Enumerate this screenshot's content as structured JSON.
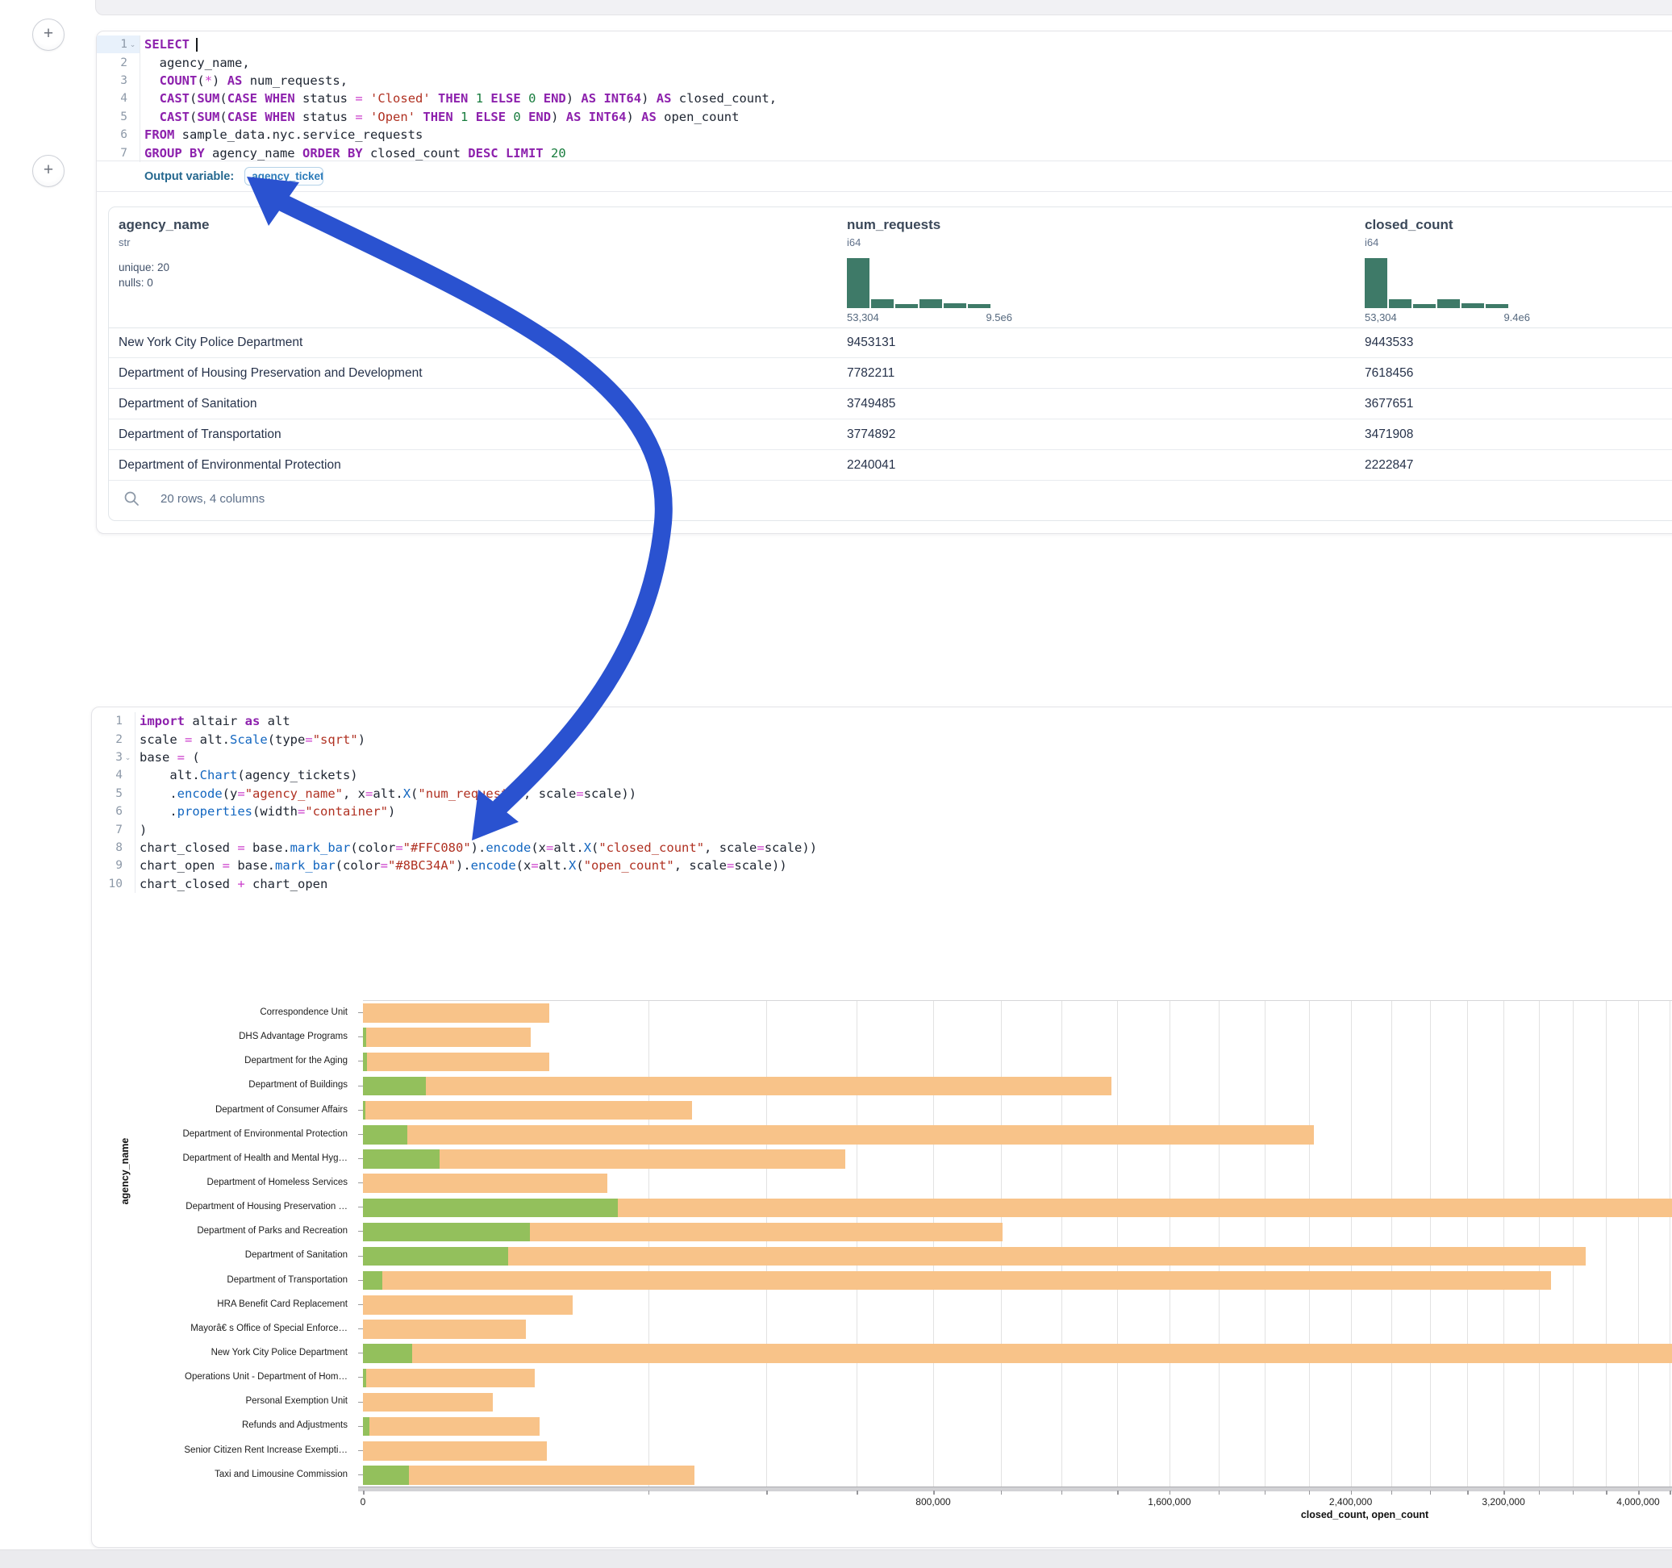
{
  "buttons": {
    "add_cell": "+"
  },
  "output_variable": {
    "label": "Output variable:",
    "value": "agency_tickets"
  },
  "sql_cell": {
    "lines": [
      {
        "n": "1",
        "chevron": true,
        "active": true,
        "cursor": true,
        "tokens": [
          [
            "kw",
            "SELECT"
          ],
          [
            "cursor",
            ""
          ]
        ]
      },
      {
        "n": "2",
        "tokens": [
          [
            "idn",
            "  agency_name,"
          ]
        ]
      },
      {
        "n": "3",
        "tokens": [
          [
            "idn",
            "  "
          ],
          [
            "kw",
            "COUNT"
          ],
          [
            "idn",
            "("
          ],
          [
            "op",
            "*"
          ],
          [
            "idn",
            ") "
          ],
          [
            "kw",
            "AS"
          ],
          [
            "idn",
            " num_requests,"
          ]
        ]
      },
      {
        "n": "4",
        "tokens": [
          [
            "idn",
            "  "
          ],
          [
            "kw",
            "CAST"
          ],
          [
            "idn",
            "("
          ],
          [
            "kw",
            "SUM"
          ],
          [
            "idn",
            "("
          ],
          [
            "kw",
            "CASE"
          ],
          [
            "idn",
            " "
          ],
          [
            "kw",
            "WHEN"
          ],
          [
            "idn",
            " status "
          ],
          [
            "op",
            "="
          ],
          [
            "idn",
            " "
          ],
          [
            "str",
            "'Closed'"
          ],
          [
            "idn",
            " "
          ],
          [
            "kw",
            "THEN"
          ],
          [
            "idn",
            " "
          ],
          [
            "num",
            "1"
          ],
          [
            "idn",
            " "
          ],
          [
            "kw",
            "ELSE"
          ],
          [
            "idn",
            " "
          ],
          [
            "num",
            "0"
          ],
          [
            "idn",
            " "
          ],
          [
            "kw",
            "END"
          ],
          [
            "idn",
            ") "
          ],
          [
            "kw",
            "AS"
          ],
          [
            "idn",
            " "
          ],
          [
            "kw",
            "INT64"
          ],
          [
            "idn",
            ") "
          ],
          [
            "kw",
            "AS"
          ],
          [
            "idn",
            " closed_count,"
          ]
        ]
      },
      {
        "n": "5",
        "tokens": [
          [
            "idn",
            "  "
          ],
          [
            "kw",
            "CAST"
          ],
          [
            "idn",
            "("
          ],
          [
            "kw",
            "SUM"
          ],
          [
            "idn",
            "("
          ],
          [
            "kw",
            "CASE"
          ],
          [
            "idn",
            " "
          ],
          [
            "kw",
            "WHEN"
          ],
          [
            "idn",
            " status "
          ],
          [
            "op",
            "="
          ],
          [
            "idn",
            " "
          ],
          [
            "str",
            "'Open'"
          ],
          [
            "idn",
            " "
          ],
          [
            "kw",
            "THEN"
          ],
          [
            "idn",
            " "
          ],
          [
            "num",
            "1"
          ],
          [
            "idn",
            " "
          ],
          [
            "kw",
            "ELSE"
          ],
          [
            "idn",
            " "
          ],
          [
            "num",
            "0"
          ],
          [
            "idn",
            " "
          ],
          [
            "kw",
            "END"
          ],
          [
            "idn",
            ") "
          ],
          [
            "kw",
            "AS"
          ],
          [
            "idn",
            " "
          ],
          [
            "kw",
            "INT64"
          ],
          [
            "idn",
            ") "
          ],
          [
            "kw",
            "AS"
          ],
          [
            "idn",
            " open_count"
          ]
        ]
      },
      {
        "n": "6",
        "tokens": [
          [
            "kw",
            "FROM"
          ],
          [
            "idn",
            " sample_data.nyc.service_requests"
          ]
        ]
      },
      {
        "n": "7",
        "tokens": [
          [
            "kw",
            "GROUP BY"
          ],
          [
            "idn",
            " agency_name "
          ],
          [
            "kw",
            "ORDER BY"
          ],
          [
            "idn",
            " closed_count "
          ],
          [
            "kw",
            "DESC"
          ],
          [
            "idn",
            " "
          ],
          [
            "kw",
            "LIMIT"
          ],
          [
            "idn",
            " "
          ],
          [
            "num",
            "20"
          ]
        ]
      }
    ]
  },
  "python_cell": {
    "lines": [
      {
        "n": "1",
        "tokens": [
          [
            "kw",
            "import"
          ],
          [
            "idn",
            " altair "
          ],
          [
            "kw",
            "as"
          ],
          [
            "idn",
            " alt"
          ]
        ]
      },
      {
        "n": "2",
        "tokens": [
          [
            "idn",
            "scale "
          ],
          [
            "op",
            "="
          ],
          [
            "idn",
            " alt."
          ],
          [
            "fn",
            "Scale"
          ],
          [
            "idn",
            "(type"
          ],
          [
            "op",
            "="
          ],
          [
            "str",
            "\"sqrt\""
          ],
          [
            "idn",
            ")"
          ]
        ]
      },
      {
        "n": "3",
        "chevron": true,
        "tokens": [
          [
            "idn",
            "base "
          ],
          [
            "op",
            "="
          ],
          [
            "idn",
            " ("
          ]
        ]
      },
      {
        "n": "4",
        "tokens": [
          [
            "idn",
            "    alt."
          ],
          [
            "fn",
            "Chart"
          ],
          [
            "idn",
            "(agency_tickets)"
          ]
        ]
      },
      {
        "n": "5",
        "tokens": [
          [
            "idn",
            "    ."
          ],
          [
            "fn",
            "encode"
          ],
          [
            "idn",
            "(y"
          ],
          [
            "op",
            "="
          ],
          [
            "str",
            "\"agency_name\""
          ],
          [
            "idn",
            ", x"
          ],
          [
            "op",
            "="
          ],
          [
            "idn",
            "alt."
          ],
          [
            "fn",
            "X"
          ],
          [
            "idn",
            "("
          ],
          [
            "str",
            "\"num_requests\""
          ],
          [
            "idn",
            ", scale"
          ],
          [
            "op",
            "="
          ],
          [
            "idn",
            "scale))"
          ]
        ]
      },
      {
        "n": "6",
        "tokens": [
          [
            "idn",
            "    ."
          ],
          [
            "fn",
            "properties"
          ],
          [
            "idn",
            "(width"
          ],
          [
            "op",
            "="
          ],
          [
            "str",
            "\"container\""
          ],
          [
            "idn",
            ")"
          ]
        ]
      },
      {
        "n": "7",
        "tokens": [
          [
            "idn",
            ")"
          ]
        ]
      },
      {
        "n": "8",
        "tokens": [
          [
            "idn",
            "chart_closed "
          ],
          [
            "op",
            "="
          ],
          [
            "idn",
            " base."
          ],
          [
            "fn",
            "mark_bar"
          ],
          [
            "idn",
            "(color"
          ],
          [
            "op",
            "="
          ],
          [
            "str",
            "\"#FFC080\""
          ],
          [
            "idn",
            ")."
          ],
          [
            "fn",
            "encode"
          ],
          [
            "idn",
            "(x"
          ],
          [
            "op",
            "="
          ],
          [
            "idn",
            "alt."
          ],
          [
            "fn",
            "X"
          ],
          [
            "idn",
            "("
          ],
          [
            "str",
            "\"closed_count\""
          ],
          [
            "idn",
            ", scale"
          ],
          [
            "op",
            "="
          ],
          [
            "idn",
            "scale))"
          ]
        ]
      },
      {
        "n": "9",
        "tokens": [
          [
            "idn",
            "chart_open "
          ],
          [
            "op",
            "="
          ],
          [
            "idn",
            " base."
          ],
          [
            "fn",
            "mark_bar"
          ],
          [
            "idn",
            "(color"
          ],
          [
            "op",
            "="
          ],
          [
            "str",
            "\"#8BC34A\""
          ],
          [
            "idn",
            ")."
          ],
          [
            "fn",
            "encode"
          ],
          [
            "idn",
            "(x"
          ],
          [
            "op",
            "="
          ],
          [
            "idn",
            "alt."
          ],
          [
            "fn",
            "X"
          ],
          [
            "idn",
            "("
          ],
          [
            "str",
            "\"open_count\""
          ],
          [
            "idn",
            ", scale"
          ],
          [
            "op",
            "="
          ],
          [
            "idn",
            "scale))"
          ]
        ]
      },
      {
        "n": "10",
        "tokens": [
          [
            "idn",
            "chart_closed "
          ],
          [
            "op",
            "+"
          ],
          [
            "idn",
            " chart_open"
          ]
        ]
      }
    ]
  },
  "table": {
    "columns": [
      {
        "name": "agency_name",
        "dtype": "str",
        "stats": [
          "unique: 20",
          "nulls: 0"
        ]
      },
      {
        "name": "num_requests",
        "dtype": "i64",
        "hist": {
          "min_label": "53,304",
          "max_label": "9.5e6",
          "bars": [
            1,
            0.17,
            0.08,
            0.17,
            0.09,
            0.08
          ],
          "color": "#3E7A68"
        }
      },
      {
        "name": "closed_count",
        "dtype": "i64",
        "hist": {
          "min_label": "53,304",
          "max_label": "9.4e6",
          "bars": [
            1,
            0.17,
            0.08,
            0.17,
            0.09,
            0.08
          ],
          "color": "#3E7A68"
        }
      }
    ],
    "rows": [
      [
        "New York City Police Department",
        "9453131",
        "9443533"
      ],
      [
        "Department of Housing Preservation and Development",
        "7782211",
        "7618456"
      ],
      [
        "Department of Sanitation",
        "3749485",
        "3677651"
      ],
      [
        "Department of Transportation",
        "3774892",
        "3471908"
      ],
      [
        "Department of Environmental Protection",
        "2240041",
        "2222847"
      ]
    ],
    "footer": "20 rows, 4 columns"
  },
  "chart_data": {
    "type": "bar",
    "orientation": "horizontal",
    "x_scale": "sqrt",
    "title": "",
    "xlabel": "closed_count, open_count",
    "ylabel": "agency_name",
    "x_tick_labels": [
      "0",
      "800,000",
      "1,600,000",
      "2,400,000",
      "3,200,000",
      "4,000,000"
    ],
    "x_tick_values": [
      0,
      800000,
      1600000,
      2400000,
      3200000,
      4000000
    ],
    "gridline_step": 200000,
    "visible_x_max": 4200000,
    "categories": [
      "Correspondence Unit",
      "DHS Advantage Programs",
      "Department for the Aging",
      "Department of Buildings",
      "Department of Consumer Affairs",
      "Department of Environmental Protection",
      "Department of Health and Mental Hyg…",
      "Department of Homeless Services",
      "Department of Housing Preservation …",
      "Department of Parks and Recreation",
      "Department of Sanitation",
      "Department of Transportation",
      "HRA Benefit Card Replacement",
      "Mayorâ€ s Office of Special Enforce…",
      "New York City Police Department",
      "Operations Unit - Department of Hom…",
      "Personal Exemption Unit",
      "Refunds and Adjustments",
      "Senior Citizen Rent Increase Exempti…",
      "Taxi and Limousine Commission"
    ],
    "series": [
      {
        "name": "closed_count",
        "color": "#FFC080",
        "values": [
          85000,
          69000,
          85000,
          1378000,
          266000,
          2222847,
          572000,
          147000,
          7618456,
          1006000,
          3677651,
          3471908,
          108000,
          65000,
          9443533,
          72600,
          41500,
          76700,
          83200,
          270000
        ]
      },
      {
        "name": "open_count",
        "color": "#8BC34A",
        "values": [
          0,
          30,
          40,
          9700,
          15,
          4800,
          14400,
          0,
          160000,
          68600,
          52000,
          900,
          0,
          0,
          6000,
          20,
          0,
          100,
          0,
          5200
        ]
      }
    ]
  }
}
